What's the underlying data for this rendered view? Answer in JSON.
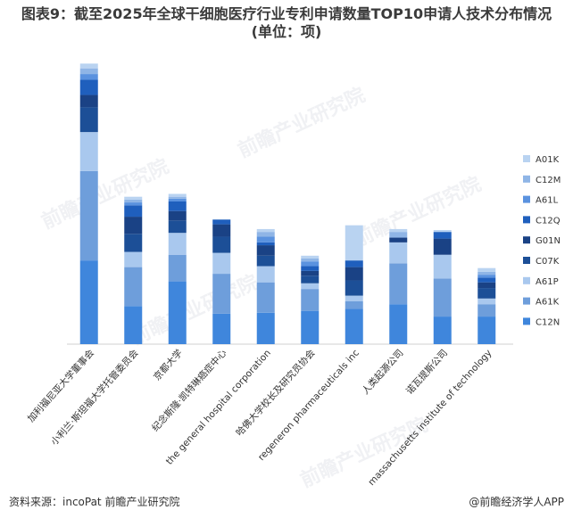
{
  "header": {
    "title_line1": "图表9：截至2025年全球干细胞医疗行业专利申请数量TOP10申请人技术分布情况",
    "title_line2": "(单位：项)"
  },
  "footer": {
    "source": "资料来源：incoPat 前瞻产业研究院",
    "brand": "@前瞻经济学人APP"
  },
  "watermark": "前瞻产业研究院",
  "chart_data": {
    "type": "bar",
    "stacked": true,
    "categories": [
      "加利福尼亚大学董事会",
      "小利兰·斯坦福大学托管委员会",
      "京都大学",
      "纪念斯隆·凯特琳癌症中心",
      "the general hospital corporation",
      "哈佛大学校长及研究员协会",
      "regeneron pharmaceuticals inc",
      "人类起源公司",
      "诺瓦提斯公司",
      "massachusetts institute of technology"
    ],
    "series": [
      {
        "name": "C12N",
        "color": "#3f86dc",
        "values": [
          88,
          40,
          66,
          32,
          33,
          35,
          37,
          42,
          29,
          29
        ]
      },
      {
        "name": "A61K",
        "color": "#6e9edb",
        "values": [
          94,
          41,
          28,
          42,
          32,
          23,
          8,
          43,
          40,
          13
        ]
      },
      {
        "name": "A61P",
        "color": "#a9c8ee",
        "values": [
          41,
          16,
          23,
          22,
          17,
          6,
          6,
          22,
          25,
          6
        ]
      },
      {
        "name": "C07K",
        "color": "#1c4f97",
        "values": [
          26,
          19,
          13,
          17,
          11,
          8,
          16,
          0,
          0,
          11
        ]
      },
      {
        "name": "G01N",
        "color": "#1a4285",
        "values": [
          13,
          18,
          10,
          13,
          11,
          5,
          14,
          5,
          17,
          6
        ]
      },
      {
        "name": "C12Q",
        "color": "#1f5fbd",
        "values": [
          16,
          12,
          10,
          5,
          3,
          5,
          7,
          0,
          7,
          5
        ]
      },
      {
        "name": "A61L",
        "color": "#5a92df",
        "values": [
          6,
          3,
          3,
          0,
          6,
          5,
          0,
          0,
          0,
          3
        ]
      },
      {
        "name": "C12M",
        "color": "#8fb5e6",
        "values": [
          6,
          3,
          2,
          0,
          5,
          3,
          0,
          6,
          0,
          3
        ]
      },
      {
        "name": "A01K",
        "color": "#b9d3f1",
        "values": [
          5,
          3,
          3,
          0,
          3,
          3,
          37,
          3,
          2,
          4
        ]
      }
    ],
    "legend_position": "right",
    "grid": false
  }
}
